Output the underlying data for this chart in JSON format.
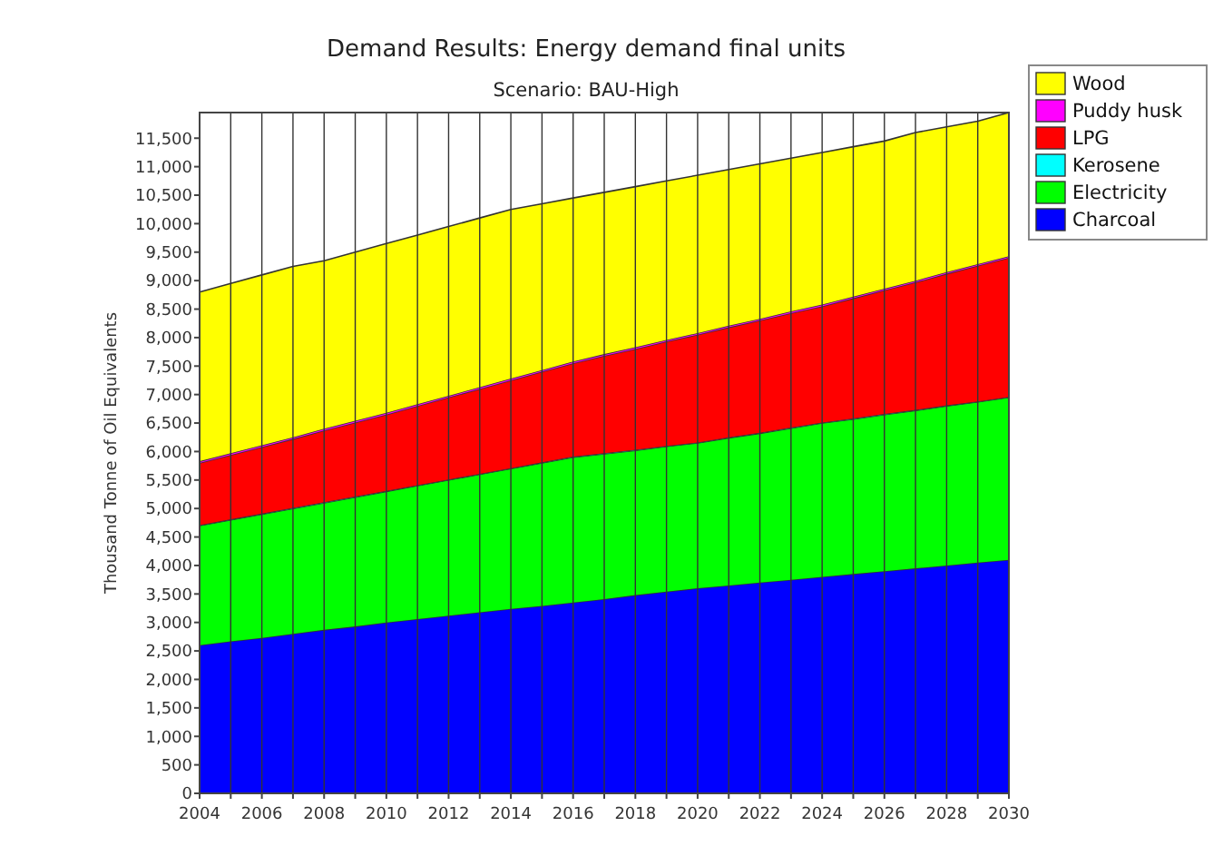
{
  "chart_data": {
    "type": "area",
    "stacked": true,
    "title": "Demand Results: Energy demand final units",
    "subtitle": "Scenario: BAU-High",
    "ylabel": "Thousand Tonne of Oil Equivalents",
    "x": [
      2004,
      2005,
      2006,
      2007,
      2008,
      2009,
      2010,
      2011,
      2012,
      2013,
      2014,
      2015,
      2016,
      2017,
      2018,
      2019,
      2020,
      2021,
      2022,
      2023,
      2024,
      2025,
      2026,
      2027,
      2028,
      2029,
      2030
    ],
    "series": [
      {
        "name": "Charcoal",
        "color": "#0000ff",
        "values": [
          2600,
          2670,
          2730,
          2800,
          2870,
          2930,
          3000,
          3060,
          3120,
          3180,
          3240,
          3290,
          3350,
          3410,
          3480,
          3540,
          3600,
          3650,
          3700,
          3750,
          3800,
          3850,
          3900,
          3950,
          4000,
          4050,
          4100
        ]
      },
      {
        "name": "Electricity",
        "color": "#00ff00",
        "values": [
          2100,
          2130,
          2170,
          2200,
          2230,
          2270,
          2300,
          2340,
          2380,
          2420,
          2460,
          2510,
          2550,
          2550,
          2540,
          2550,
          2550,
          2590,
          2620,
          2660,
          2700,
          2720,
          2750,
          2770,
          2800,
          2820,
          2850
        ]
      },
      {
        "name": "Kerosene",
        "color": "#00ffff",
        "values": [
          10,
          10,
          10,
          10,
          10,
          10,
          10,
          10,
          10,
          10,
          10,
          10,
          10,
          10,
          10,
          10,
          10,
          10,
          10,
          10,
          10,
          10,
          10,
          10,
          10,
          10,
          10
        ]
      },
      {
        "name": "LPG",
        "color": "#ff0000",
        "values": [
          1090,
          1130,
          1170,
          1210,
          1260,
          1300,
          1340,
          1390,
          1440,
          1490,
          1540,
          1590,
          1640,
          1710,
          1770,
          1830,
          1890,
          1930,
          1970,
          2010,
          2040,
          2110,
          2170,
          2240,
          2310,
          2380,
          2440
        ]
      },
      {
        "name": "Puddy husk",
        "color": "#ff00ff",
        "values": [
          30,
          30,
          30,
          30,
          30,
          30,
          30,
          30,
          30,
          30,
          30,
          30,
          30,
          30,
          30,
          30,
          30,
          30,
          30,
          30,
          30,
          30,
          30,
          30,
          30,
          30,
          30
        ]
      },
      {
        "name": "Wood",
        "color": "#ffff00",
        "values": [
          2970,
          2980,
          2990,
          3000,
          2950,
          2960,
          2970,
          2970,
          2970,
          2970,
          2970,
          2920,
          2870,
          2840,
          2820,
          2790,
          2770,
          2740,
          2720,
          2690,
          2670,
          2630,
          2590,
          2600,
          2550,
          2510,
          2520
        ]
      }
    ],
    "xlim": [
      2004,
      2030
    ],
    "xticks": [
      2004,
      {
        "value": 2005,
        "label": null
      },
      2006,
      {
        "value": 2007,
        "label": null
      },
      2008,
      {
        "value": 2009,
        "label": null
      },
      2010,
      {
        "value": 2011,
        "label": null
      },
      2012,
      {
        "value": 2013,
        "label": null
      },
      2014,
      {
        "value": 2015,
        "label": null
      },
      2016,
      {
        "value": 2017,
        "label": null
      },
      2018,
      {
        "value": 2019,
        "label": null
      },
      2020,
      {
        "value": 2021,
        "label": null
      },
      2022,
      {
        "value": 2023,
        "label": null
      },
      2024,
      {
        "value": 2025,
        "label": null
      },
      2026,
      {
        "value": 2027,
        "label": null
      },
      2028,
      {
        "value": 2029,
        "label": null
      },
      2030
    ],
    "ylim": [
      0,
      11950
    ],
    "yticks": [
      0,
      500,
      {
        "value": 1000,
        "label": "1,000"
      },
      {
        "value": 1500,
        "label": "1,500"
      },
      {
        "value": 2000,
        "label": "2,000"
      },
      {
        "value": 2500,
        "label": "2,500"
      },
      {
        "value": 3000,
        "label": "3,000"
      },
      {
        "value": 3500,
        "label": "3,500"
      },
      {
        "value": 4000,
        "label": "4,000"
      },
      {
        "value": 4500,
        "label": "4,500"
      },
      {
        "value": 5000,
        "label": "5,000"
      },
      {
        "value": 5500,
        "label": "5,500"
      },
      {
        "value": 6000,
        "label": "6,000"
      },
      {
        "value": 6500,
        "label": "6,500"
      },
      {
        "value": 7000,
        "label": "7,000"
      },
      {
        "value": 7500,
        "label": "7,500"
      },
      {
        "value": 8000,
        "label": "8,000"
      },
      {
        "value": 8500,
        "label": "8,500"
      },
      {
        "value": 9000,
        "label": "9,000"
      },
      {
        "value": 9500,
        "label": "9,500"
      },
      {
        "value": 10000,
        "label": "10,000"
      },
      {
        "value": 10500,
        "label": "10,500"
      },
      {
        "value": 11000,
        "label": "11,000"
      },
      {
        "value": 11500,
        "label": "11,500"
      }
    ],
    "grid": "x",
    "legend": "right"
  }
}
